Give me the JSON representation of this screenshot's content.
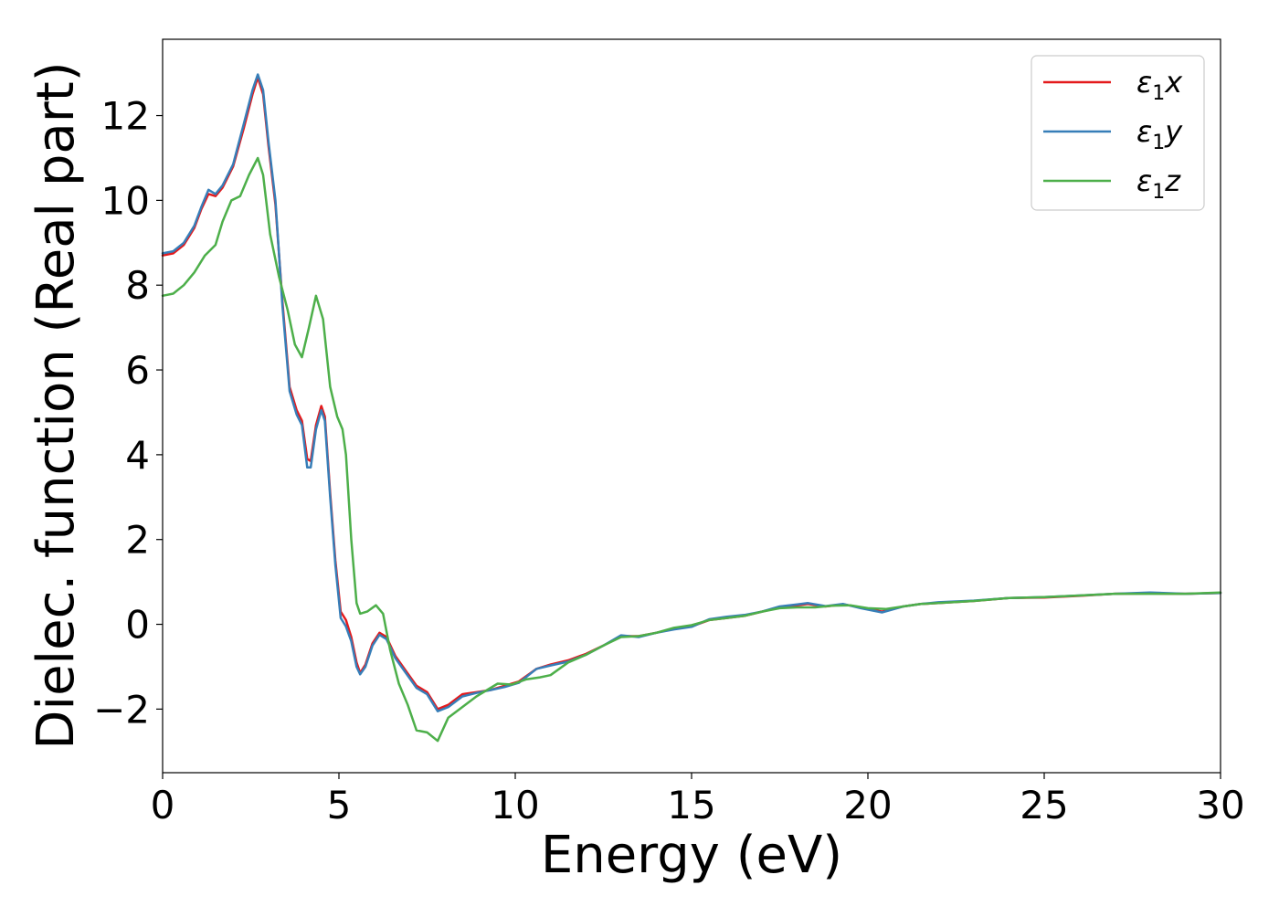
{
  "chart_data": {
    "type": "line",
    "title": "",
    "xlabel": "Energy (eV)",
    "ylabel": "Dielec. function (Real part)",
    "xlim": [
      0,
      30
    ],
    "ylim": [
      -3.5,
      13.8
    ],
    "xticks": [
      0,
      5,
      10,
      15,
      20,
      25,
      30
    ],
    "yticks": [
      -2,
      0,
      2,
      4,
      6,
      8,
      10,
      12
    ],
    "grid": false,
    "legend_position": "top-right",
    "series": [
      {
        "name": "ε1x",
        "name_parts": {
          "base": "ε",
          "sub": "1",
          "suffix": "x"
        },
        "color": "#e41a1c",
        "points": [
          [
            0,
            8.7
          ],
          [
            0.3,
            8.75
          ],
          [
            0.6,
            8.95
          ],
          [
            0.9,
            9.35
          ],
          [
            1.1,
            9.8
          ],
          [
            1.3,
            10.15
          ],
          [
            1.5,
            10.1
          ],
          [
            1.7,
            10.3
          ],
          [
            2.0,
            10.8
          ],
          [
            2.3,
            11.7
          ],
          [
            2.55,
            12.5
          ],
          [
            2.7,
            12.9
          ],
          [
            2.85,
            12.5
          ],
          [
            3.0,
            11.3
          ],
          [
            3.2,
            9.9
          ],
          [
            3.4,
            7.6
          ],
          [
            3.6,
            5.6
          ],
          [
            3.8,
            5.05
          ],
          [
            3.95,
            4.8
          ],
          [
            4.1,
            3.9
          ],
          [
            4.2,
            3.85
          ],
          [
            4.35,
            4.7
          ],
          [
            4.5,
            5.15
          ],
          [
            4.6,
            4.9
          ],
          [
            4.75,
            3.1
          ],
          [
            4.9,
            1.5
          ],
          [
            5.05,
            0.3
          ],
          [
            5.2,
            0.1
          ],
          [
            5.35,
            -0.3
          ],
          [
            5.5,
            -0.9
          ],
          [
            5.6,
            -1.15
          ],
          [
            5.75,
            -0.95
          ],
          [
            5.95,
            -0.45
          ],
          [
            6.15,
            -0.2
          ],
          [
            6.35,
            -0.3
          ],
          [
            6.6,
            -0.75
          ],
          [
            6.9,
            -1.1
          ],
          [
            7.2,
            -1.45
          ],
          [
            7.5,
            -1.6
          ],
          [
            7.8,
            -2.0
          ],
          [
            8.1,
            -1.9
          ],
          [
            8.5,
            -1.65
          ],
          [
            8.9,
            -1.6
          ],
          [
            9.3,
            -1.55
          ],
          [
            9.7,
            -1.45
          ],
          [
            10.1,
            -1.35
          ],
          [
            10.6,
            -1.05
          ],
          [
            11.0,
            -0.95
          ],
          [
            11.5,
            -0.85
          ],
          [
            12.0,
            -0.7
          ],
          [
            12.5,
            -0.5
          ],
          [
            13.0,
            -0.28
          ],
          [
            13.5,
            -0.28
          ],
          [
            14.0,
            -0.2
          ],
          [
            14.5,
            -0.1
          ],
          [
            15.0,
            -0.05
          ],
          [
            15.5,
            0.1
          ],
          [
            16.0,
            0.15
          ],
          [
            16.5,
            0.2
          ],
          [
            17.0,
            0.3
          ],
          [
            17.5,
            0.4
          ],
          [
            18.0,
            0.45
          ],
          [
            18.3,
            0.48
          ],
          [
            18.8,
            0.42
          ],
          [
            19.3,
            0.47
          ],
          [
            19.8,
            0.4
          ],
          [
            20.4,
            0.3
          ],
          [
            21.0,
            0.42
          ],
          [
            21.5,
            0.48
          ],
          [
            22.0,
            0.5
          ],
          [
            23.0,
            0.55
          ],
          [
            24.0,
            0.62
          ],
          [
            25.0,
            0.63
          ],
          [
            26.0,
            0.67
          ],
          [
            27.0,
            0.72
          ],
          [
            28.0,
            0.73
          ],
          [
            29.0,
            0.72
          ],
          [
            30.0,
            0.74
          ]
        ]
      },
      {
        "name": "ε1y",
        "name_parts": {
          "base": "ε",
          "sub": "1",
          "suffix": "y"
        },
        "color": "#377eb8",
        "points": [
          [
            0,
            8.75
          ],
          [
            0.3,
            8.8
          ],
          [
            0.6,
            9.0
          ],
          [
            0.9,
            9.4
          ],
          [
            1.1,
            9.85
          ],
          [
            1.3,
            10.25
          ],
          [
            1.5,
            10.15
          ],
          [
            1.7,
            10.35
          ],
          [
            2.0,
            10.85
          ],
          [
            2.3,
            11.8
          ],
          [
            2.55,
            12.6
          ],
          [
            2.7,
            12.97
          ],
          [
            2.85,
            12.6
          ],
          [
            3.0,
            11.4
          ],
          [
            3.2,
            10.0
          ],
          [
            3.4,
            7.5
          ],
          [
            3.6,
            5.5
          ],
          [
            3.8,
            4.95
          ],
          [
            3.95,
            4.7
          ],
          [
            4.1,
            3.7
          ],
          [
            4.2,
            3.7
          ],
          [
            4.35,
            4.6
          ],
          [
            4.5,
            5.05
          ],
          [
            4.6,
            4.8
          ],
          [
            4.75,
            3.0
          ],
          [
            4.9,
            1.4
          ],
          [
            5.05,
            0.15
          ],
          [
            5.2,
            -0.05
          ],
          [
            5.35,
            -0.4
          ],
          [
            5.5,
            -1.0
          ],
          [
            5.6,
            -1.18
          ],
          [
            5.75,
            -1.0
          ],
          [
            5.95,
            -0.5
          ],
          [
            6.15,
            -0.25
          ],
          [
            6.35,
            -0.35
          ],
          [
            6.6,
            -0.8
          ],
          [
            6.9,
            -1.15
          ],
          [
            7.2,
            -1.5
          ],
          [
            7.5,
            -1.65
          ],
          [
            7.8,
            -2.05
          ],
          [
            8.1,
            -1.95
          ],
          [
            8.5,
            -1.7
          ],
          [
            8.9,
            -1.62
          ],
          [
            9.3,
            -1.55
          ],
          [
            9.7,
            -1.48
          ],
          [
            10.1,
            -1.38
          ],
          [
            10.6,
            -1.05
          ],
          [
            11.0,
            -0.97
          ],
          [
            11.5,
            -0.88
          ],
          [
            12.0,
            -0.72
          ],
          [
            12.5,
            -0.5
          ],
          [
            13.0,
            -0.26
          ],
          [
            13.5,
            -0.3
          ],
          [
            14.0,
            -0.2
          ],
          [
            14.5,
            -0.12
          ],
          [
            15.0,
            -0.06
          ],
          [
            15.5,
            0.12
          ],
          [
            16.0,
            0.18
          ],
          [
            16.5,
            0.22
          ],
          [
            17.0,
            0.3
          ],
          [
            17.5,
            0.42
          ],
          [
            18.0,
            0.47
          ],
          [
            18.3,
            0.5
          ],
          [
            18.8,
            0.43
          ],
          [
            19.3,
            0.48
          ],
          [
            19.8,
            0.38
          ],
          [
            20.4,
            0.28
          ],
          [
            21.0,
            0.42
          ],
          [
            21.5,
            0.48
          ],
          [
            22.0,
            0.52
          ],
          [
            23.0,
            0.56
          ],
          [
            24.0,
            0.62
          ],
          [
            25.0,
            0.64
          ],
          [
            26.0,
            0.68
          ],
          [
            27.0,
            0.72
          ],
          [
            28.0,
            0.75
          ],
          [
            29.0,
            0.72
          ],
          [
            30.0,
            0.74
          ]
        ]
      },
      {
        "name": "ε1z",
        "name_parts": {
          "base": "ε",
          "sub": "1",
          "suffix": "z"
        },
        "color": "#4daf4a",
        "points": [
          [
            0,
            7.75
          ],
          [
            0.3,
            7.8
          ],
          [
            0.6,
            8.0
          ],
          [
            0.9,
            8.3
          ],
          [
            1.2,
            8.7
          ],
          [
            1.5,
            8.95
          ],
          [
            1.7,
            9.5
          ],
          [
            1.95,
            10.0
          ],
          [
            2.2,
            10.1
          ],
          [
            2.45,
            10.6
          ],
          [
            2.7,
            11.0
          ],
          [
            2.85,
            10.6
          ],
          [
            3.05,
            9.2
          ],
          [
            3.3,
            8.2
          ],
          [
            3.55,
            7.4
          ],
          [
            3.75,
            6.6
          ],
          [
            3.95,
            6.3
          ],
          [
            4.15,
            7.0
          ],
          [
            4.35,
            7.75
          ],
          [
            4.55,
            7.2
          ],
          [
            4.75,
            5.6
          ],
          [
            4.95,
            4.9
          ],
          [
            5.1,
            4.6
          ],
          [
            5.2,
            4.0
          ],
          [
            5.35,
            2.0
          ],
          [
            5.5,
            0.5
          ],
          [
            5.6,
            0.25
          ],
          [
            5.8,
            0.3
          ],
          [
            6.05,
            0.45
          ],
          [
            6.25,
            0.25
          ],
          [
            6.45,
            -0.6
          ],
          [
            6.7,
            -1.4
          ],
          [
            6.95,
            -1.9
          ],
          [
            7.2,
            -2.5
          ],
          [
            7.5,
            -2.55
          ],
          [
            7.8,
            -2.75
          ],
          [
            8.1,
            -2.2
          ],
          [
            8.5,
            -1.95
          ],
          [
            8.9,
            -1.7
          ],
          [
            9.2,
            -1.55
          ],
          [
            9.5,
            -1.4
          ],
          [
            9.9,
            -1.42
          ],
          [
            10.3,
            -1.3
          ],
          [
            10.7,
            -1.25
          ],
          [
            11.0,
            -1.2
          ],
          [
            11.5,
            -0.9
          ],
          [
            12.0,
            -0.72
          ],
          [
            12.5,
            -0.5
          ],
          [
            13.0,
            -0.3
          ],
          [
            13.5,
            -0.28
          ],
          [
            14.0,
            -0.2
          ],
          [
            14.5,
            -0.08
          ],
          [
            15.0,
            -0.02
          ],
          [
            15.5,
            0.1
          ],
          [
            16.0,
            0.15
          ],
          [
            16.5,
            0.2
          ],
          [
            17.0,
            0.3
          ],
          [
            17.5,
            0.38
          ],
          [
            18.0,
            0.4
          ],
          [
            18.5,
            0.4
          ],
          [
            19.0,
            0.44
          ],
          [
            19.5,
            0.45
          ],
          [
            20.0,
            0.38
          ],
          [
            20.5,
            0.36
          ],
          [
            21.0,
            0.42
          ],
          [
            21.5,
            0.48
          ],
          [
            22.0,
            0.5
          ],
          [
            23.0,
            0.55
          ],
          [
            24.0,
            0.62
          ],
          [
            25.0,
            0.64
          ],
          [
            26.0,
            0.68
          ],
          [
            27.0,
            0.72
          ],
          [
            28.0,
            0.72
          ],
          [
            29.0,
            0.72
          ],
          [
            30.0,
            0.75
          ]
        ]
      }
    ]
  }
}
